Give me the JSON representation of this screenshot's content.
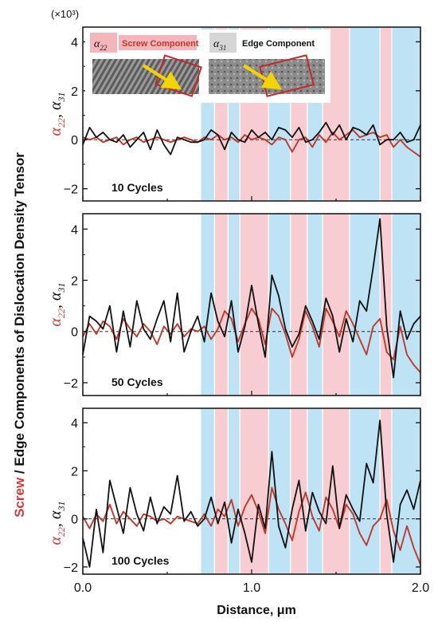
{
  "figure": {
    "scale_label": "(×10³)",
    "ylabel": {
      "screw_word": "Screw",
      "rest": " / Edge Components of Dislocation Density Tensor"
    },
    "panel_ylabel": {
      "a22": "α22",
      "a31": "α31",
      "a22_base": "α",
      "a22_sub": "22",
      "a31_base": "α",
      "a31_sub": "31"
    },
    "xlabel": "Distance, μm",
    "legend": {
      "screw_symbol_base": "α",
      "screw_symbol_sub": "22",
      "screw_label": "Screw Component",
      "edge_symbol_base": "α",
      "edge_symbol_sub": "31",
      "edge_label": "Edge Component",
      "inset_screw": "TEM image with screw dislocation arrow",
      "inset_edge": "TEM image with edge dislocation arrow"
    }
  },
  "colors": {
    "screw": "#c0392b",
    "edge": "#111111",
    "band_blue": "#bde3f5",
    "band_pink": "#f7cdd1",
    "zero_line": "#333333"
  },
  "chart_data": [
    {
      "type": "line",
      "label": "10 Cycles",
      "xlim": [
        0,
        2.0
      ],
      "ylim": [
        -2.5,
        4.6
      ],
      "yticks": [
        -2,
        0,
        2,
        4
      ],
      "xticks": [],
      "bands": [
        {
          "x0": 0.7,
          "x1": 0.78,
          "kind": "blue"
        },
        {
          "x0": 0.78,
          "x1": 0.86,
          "kind": "pink"
        },
        {
          "x0": 0.86,
          "x1": 0.93,
          "kind": "blue"
        },
        {
          "x0": 0.93,
          "x1": 1.1,
          "kind": "pink"
        },
        {
          "x0": 1.1,
          "x1": 1.23,
          "kind": "blue"
        },
        {
          "x0": 1.23,
          "x1": 1.33,
          "kind": "pink"
        },
        {
          "x0": 1.33,
          "x1": 1.42,
          "kind": "blue"
        },
        {
          "x0": 1.42,
          "x1": 1.58,
          "kind": "pink"
        },
        {
          "x0": 1.58,
          "x1": 1.76,
          "kind": "blue"
        },
        {
          "x0": 1.76,
          "x1": 1.83,
          "kind": "pink"
        },
        {
          "x0": 1.83,
          "x1": 2.0,
          "kind": "blue"
        }
      ],
      "x": [
        0.0,
        0.04,
        0.08,
        0.12,
        0.16,
        0.2,
        0.24,
        0.28,
        0.32,
        0.36,
        0.4,
        0.44,
        0.48,
        0.52,
        0.56,
        0.6,
        0.64,
        0.68,
        0.72,
        0.76,
        0.8,
        0.84,
        0.88,
        0.92,
        0.96,
        1.0,
        1.04,
        1.08,
        1.12,
        1.16,
        1.2,
        1.24,
        1.28,
        1.32,
        1.36,
        1.4,
        1.44,
        1.48,
        1.52,
        1.56,
        1.6,
        1.64,
        1.68,
        1.72,
        1.76,
        1.8,
        1.84,
        1.88,
        1.92,
        1.96,
        2.0
      ],
      "series": [
        {
          "name": "α22",
          "role": "screw",
          "values": [
            0.1,
            0.0,
            0.1,
            -0.1,
            0.0,
            0.1,
            -0.2,
            0.0,
            0.1,
            -0.1,
            0.0,
            0.1,
            0.0,
            -0.1,
            0.0,
            0.1,
            0.0,
            -0.1,
            0.1,
            0.0,
            0.2,
            0.0,
            0.1,
            -0.1,
            0.2,
            0.0,
            0.1,
            0.0,
            -0.2,
            0.1,
            0.0,
            -0.5,
            0.0,
            0.1,
            -0.3,
            0.2,
            -0.1,
            0.3,
            0.0,
            0.2,
            0.4,
            0.1,
            0.2,
            0.3,
            0.1,
            0.2,
            -0.3,
            0.0,
            -0.3,
            -0.5,
            -0.7
          ]
        },
        {
          "name": "α31",
          "role": "edge",
          "values": [
            -0.2,
            0.5,
            0.1,
            0.3,
            0.0,
            -0.1,
            0.2,
            -0.3,
            0.0,
            0.3,
            -0.4,
            0.4,
            -0.2,
            -0.6,
            0.1,
            0.0,
            -0.1,
            -0.1,
            0.0,
            0.4,
            0.2,
            -0.4,
            0.3,
            0.0,
            -0.1,
            0.4,
            0.1,
            0.3,
            0.0,
            0.5,
            0.4,
            0.1,
            0.5,
            -0.1,
            0.0,
            0.3,
            0.7,
            0.2,
            0.6,
            0.0,
            0.5,
            0.4,
            0.2,
            0.6,
            -0.2,
            0.0,
            0.0,
            0.3,
            -0.1,
            0.0,
            0.6
          ]
        }
      ]
    },
    {
      "type": "line",
      "label": "50 Cycles",
      "xlim": [
        0,
        2.0
      ],
      "ylim": [
        -2.5,
        4.6
      ],
      "yticks": [
        -2,
        0,
        2,
        4
      ],
      "xticks": [],
      "bands": [
        {
          "x0": 0.7,
          "x1": 0.78,
          "kind": "blue"
        },
        {
          "x0": 0.78,
          "x1": 0.86,
          "kind": "pink"
        },
        {
          "x0": 0.86,
          "x1": 0.93,
          "kind": "blue"
        },
        {
          "x0": 0.93,
          "x1": 1.1,
          "kind": "pink"
        },
        {
          "x0": 1.1,
          "x1": 1.23,
          "kind": "blue"
        },
        {
          "x0": 1.23,
          "x1": 1.33,
          "kind": "pink"
        },
        {
          "x0": 1.33,
          "x1": 1.42,
          "kind": "blue"
        },
        {
          "x0": 1.42,
          "x1": 1.58,
          "kind": "pink"
        },
        {
          "x0": 1.58,
          "x1": 1.76,
          "kind": "blue"
        },
        {
          "x0": 1.76,
          "x1": 1.83,
          "kind": "pink"
        },
        {
          "x0": 1.83,
          "x1": 2.0,
          "kind": "blue"
        }
      ],
      "x": [
        0.0,
        0.04,
        0.08,
        0.12,
        0.16,
        0.2,
        0.24,
        0.28,
        0.32,
        0.36,
        0.4,
        0.44,
        0.48,
        0.52,
        0.56,
        0.6,
        0.64,
        0.68,
        0.72,
        0.76,
        0.8,
        0.84,
        0.88,
        0.92,
        0.96,
        1.0,
        1.04,
        1.08,
        1.12,
        1.16,
        1.2,
        1.24,
        1.28,
        1.32,
        1.36,
        1.4,
        1.44,
        1.48,
        1.52,
        1.56,
        1.6,
        1.64,
        1.68,
        1.72,
        1.76,
        1.8,
        1.84,
        1.88,
        1.92,
        1.96,
        2.0
      ],
      "series": [
        {
          "name": "α22",
          "role": "screw",
          "values": [
            -0.2,
            0.3,
            -0.1,
            0.4,
            0.2,
            -0.3,
            0.5,
            0.1,
            -0.2,
            0.3,
            0.0,
            -0.5,
            0.2,
            -0.1,
            0.3,
            -0.2,
            0.1,
            0.0,
            0.2,
            -0.3,
            0.1,
            0.8,
            0.5,
            -0.4,
            0.3,
            0.9,
            0.5,
            -0.5,
            0.9,
            0.6,
            -0.1,
            -1.0,
            -0.3,
            0.8,
            0.2,
            -0.6,
            0.9,
            0.4,
            -0.2,
            0.8,
            0.3,
            -0.3,
            -0.9,
            0.2,
            0.5,
            -0.8,
            -1.1,
            0.2,
            -0.9,
            -1.3,
            -1.6
          ]
        },
        {
          "name": "α31",
          "role": "edge",
          "values": [
            -0.9,
            0.6,
            0.4,
            0.1,
            1.0,
            -0.8,
            0.8,
            -0.6,
            1.2,
            0.1,
            -0.3,
            0.5,
            1.2,
            -0.4,
            1.5,
            -0.8,
            0.0,
            0.6,
            -0.4,
            1.5,
            0.4,
            -0.2,
            1.2,
            -0.8,
            0.2,
            1.8,
            0.3,
            -1.0,
            2.2,
            1.4,
            0.1,
            -0.6,
            -0.1,
            1.0,
            0.4,
            -0.3,
            1.3,
            0.6,
            -0.8,
            0.5,
            -0.4,
            1.2,
            0.8,
            2.5,
            4.4,
            0.2,
            -1.8,
            0.8,
            -0.3,
            0.3,
            0.6
          ]
        }
      ]
    },
    {
      "type": "line",
      "label": "100 Cycles",
      "xlim": [
        0,
        2.0
      ],
      "ylim": [
        -2.3,
        4.6
      ],
      "yticks": [
        -2,
        0,
        2,
        4
      ],
      "xticks": [
        0.0,
        1.0,
        2.0
      ],
      "xtick_labels": [
        "0.0",
        "1.0",
        "2.0"
      ],
      "bands": [
        {
          "x0": 0.7,
          "x1": 0.78,
          "kind": "blue"
        },
        {
          "x0": 0.78,
          "x1": 0.86,
          "kind": "pink"
        },
        {
          "x0": 0.86,
          "x1": 0.93,
          "kind": "blue"
        },
        {
          "x0": 0.93,
          "x1": 1.1,
          "kind": "pink"
        },
        {
          "x0": 1.1,
          "x1": 1.23,
          "kind": "blue"
        },
        {
          "x0": 1.23,
          "x1": 1.33,
          "kind": "pink"
        },
        {
          "x0": 1.33,
          "x1": 1.42,
          "kind": "blue"
        },
        {
          "x0": 1.42,
          "x1": 1.58,
          "kind": "pink"
        },
        {
          "x0": 1.58,
          "x1": 1.76,
          "kind": "blue"
        },
        {
          "x0": 1.76,
          "x1": 1.83,
          "kind": "pink"
        },
        {
          "x0": 1.83,
          "x1": 2.0,
          "kind": "blue"
        }
      ],
      "x": [
        0.0,
        0.04,
        0.08,
        0.12,
        0.16,
        0.2,
        0.24,
        0.28,
        0.32,
        0.36,
        0.4,
        0.44,
        0.48,
        0.52,
        0.56,
        0.6,
        0.64,
        0.68,
        0.72,
        0.76,
        0.8,
        0.84,
        0.88,
        0.92,
        0.96,
        1.0,
        1.04,
        1.08,
        1.12,
        1.16,
        1.2,
        1.24,
        1.28,
        1.32,
        1.36,
        1.4,
        1.44,
        1.48,
        1.52,
        1.56,
        1.6,
        1.64,
        1.68,
        1.72,
        1.76,
        1.8,
        1.84,
        1.88,
        1.92,
        1.96,
        2.0
      ],
      "series": [
        {
          "name": "α22",
          "role": "screw",
          "values": [
            0.1,
            -0.4,
            0.2,
            -0.1,
            0.6,
            -0.2,
            0.3,
            0.0,
            -0.3,
            0.2,
            0.1,
            -0.1,
            0.0,
            -0.2,
            0.1,
            0.0,
            -0.1,
            -0.2,
            0.2,
            -0.3,
            0.4,
            0.1,
            0.8,
            -0.3,
            0.5,
            1.0,
            0.3,
            -0.6,
            1.3,
            0.4,
            -0.2,
            -0.9,
            0.3,
            1.1,
            0.1,
            -0.5,
            0.9,
            0.4,
            -0.4,
            0.6,
            0.2,
            -0.6,
            -1.1,
            -0.3,
            0.0,
            0.8,
            -0.5,
            -1.3,
            -0.3,
            -1.2,
            -1.9
          ]
        },
        {
          "name": "α31",
          "role": "edge",
          "values": [
            -0.8,
            -2.0,
            0.4,
            -1.4,
            1.6,
            0.5,
            -0.6,
            1.3,
            0.2,
            -0.5,
            0.9,
            -0.2,
            0.5,
            0.2,
            1.8,
            -0.1,
            0.3,
            -0.3,
            0.0,
            0.9,
            -0.2,
            0.7,
            -1.0,
            0.4,
            -0.6,
            -1.8,
            0.6,
            -0.4,
            2.8,
            -0.3,
            -1.2,
            0.4,
            1.6,
            -0.5,
            1.1,
            0.3,
            -0.2,
            2.2,
            -0.4,
            1.0,
            0.4,
            -0.1,
            2.3,
            1.5,
            4.1,
            0.2,
            -1.8,
            0.6,
            1.2,
            0.4,
            1.6
          ]
        }
      ]
    }
  ]
}
